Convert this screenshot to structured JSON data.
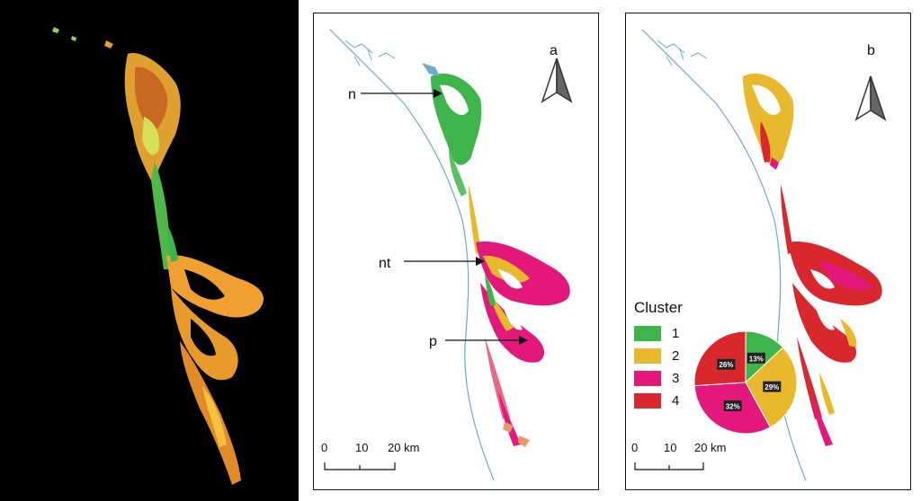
{
  "panels": {
    "a": {
      "letter": "a",
      "annotations": [
        {
          "label": "n"
        },
        {
          "label": "nt"
        },
        {
          "label": "p"
        }
      ],
      "scale": {
        "ticks": [
          "0",
          "10",
          "20 km"
        ]
      }
    },
    "b": {
      "letter": "b",
      "scale": {
        "ticks": [
          "0",
          "10",
          "20 km"
        ]
      }
    }
  },
  "legend": {
    "title": "Cluster",
    "items": [
      {
        "label": "1",
        "color": "#3db54a"
      },
      {
        "label": "2",
        "color": "#e8b92c"
      },
      {
        "label": "3",
        "color": "#e2197a"
      },
      {
        "label": "4",
        "color": "#d9272e"
      }
    ]
  },
  "pie": {
    "slices": [
      {
        "cluster": "1",
        "label": "13%",
        "value": 13,
        "color": "#3db54a"
      },
      {
        "cluster": "2",
        "label": "29%",
        "value": 29,
        "color": "#e8b92c"
      },
      {
        "cluster": "3",
        "label": "32%",
        "value": 32,
        "color": "#e2197a"
      },
      {
        "cluster": "4",
        "label": "26%",
        "value": 26,
        "color": "#d9272e"
      }
    ]
  },
  "colors": {
    "coast": "#6aaccb",
    "orange": "#f0a030",
    "green": "#3db54a"
  },
  "icons": [
    "north-arrow-icon"
  ]
}
